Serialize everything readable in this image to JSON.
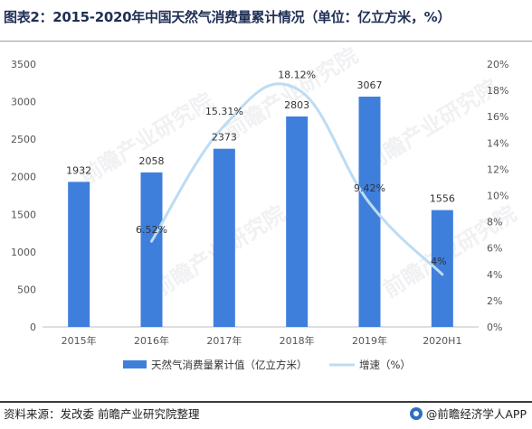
{
  "title": "图表2：2015-2020年中国天然气消费量累计情况（单位：亿立方米，%）",
  "footer": {
    "source": "资料来源：发改委  前瞻产业研究院整理",
    "brand": "@前瞻经济学人APP"
  },
  "watermark": "前瞻产业研究院",
  "colors": {
    "bar": "#3f7fdc",
    "line": "#bcdcf3",
    "axis_text": "#555555",
    "label_text": "#333333"
  },
  "chart_data": {
    "type": "bar",
    "categories": [
      "2015年",
      "2016年",
      "2017年",
      "2018年",
      "2019年",
      "2020H1"
    ],
    "series": [
      {
        "name": "天然气消费量累计值（亿立方米）",
        "type": "bar",
        "axis": "left",
        "values": [
          1932,
          2058,
          2373,
          2803,
          3067,
          1556
        ],
        "labels": [
          "1932",
          "2058",
          "2373",
          "2803",
          "3067",
          "1556"
        ]
      },
      {
        "name": "增速（%）",
        "type": "line",
        "axis": "right",
        "values": [
          null,
          6.52,
          15.31,
          18.12,
          9.42,
          4
        ],
        "labels": [
          "",
          "6.52%",
          "15.31%",
          "18.12%",
          "9.42%",
          "4%"
        ]
      }
    ],
    "left_axis": {
      "ylim": [
        0,
        3500
      ],
      "ticks": [
        "0",
        "500",
        "1000",
        "1500",
        "2000",
        "2500",
        "3000",
        "3500"
      ]
    },
    "right_axis": {
      "ylim": [
        0,
        20
      ],
      "ticks": [
        "0%",
        "2%",
        "4%",
        "6%",
        "8%",
        "10%",
        "12%",
        "14%",
        "16%",
        "18%",
        "20%"
      ]
    },
    "grid": false,
    "legend_position": "bottom"
  }
}
